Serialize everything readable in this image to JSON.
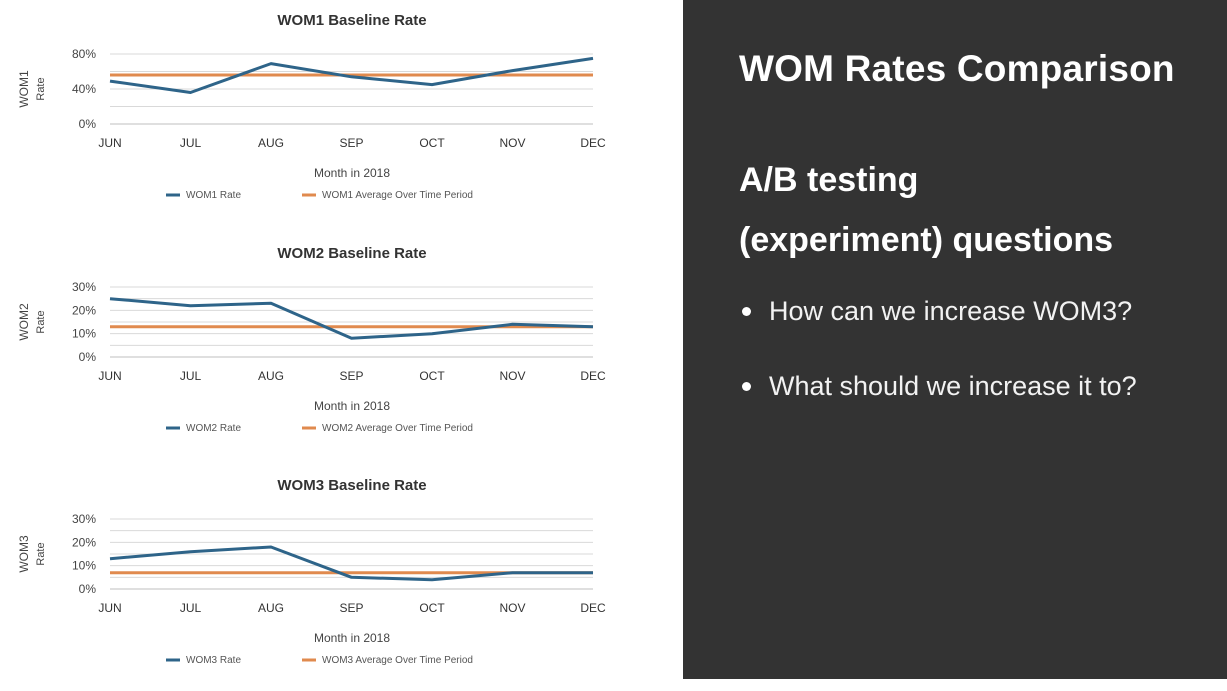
{
  "slide": {
    "title": "WOM Rates Comparison",
    "subtitle_line1": "A/B testing",
    "subtitle_line2": "(experiment) questions",
    "bullets": [
      "How can we increase WOM3?",
      "What should we increase it to?"
    ]
  },
  "colors": {
    "rate_line": "#2e6489",
    "average_line": "#e08a4e",
    "slide_background": "#333333"
  },
  "chart_data": [
    {
      "type": "line",
      "title": "WOM1 Baseline Rate",
      "xlabel": "Month in 2018",
      "ylabel": "WOM1",
      "ylabel_sub": "Rate",
      "categories": [
        "JUN",
        "JUL",
        "AUG",
        "SEP",
        "OCT",
        "NOV",
        "DEC"
      ],
      "yticks": [
        "0%",
        "40%",
        "80%"
      ],
      "ylim": [
        0,
        0.8
      ],
      "grid": true,
      "legend_position": "bottom",
      "series": [
        {
          "name": "WOM1 Rate",
          "values": [
            0.49,
            0.36,
            0.69,
            0.54,
            0.45,
            0.61,
            0.75
          ]
        },
        {
          "name": "WOM1 Average Over Time Period",
          "values": [
            0.56,
            0.56,
            0.56,
            0.56,
            0.56,
            0.56,
            0.56
          ]
        }
      ]
    },
    {
      "type": "line",
      "title": "WOM2 Baseline Rate",
      "xlabel": "Month in 2018",
      "ylabel": "WOM2",
      "ylabel_sub": "Rate",
      "categories": [
        "JUN",
        "JUL",
        "AUG",
        "SEP",
        "OCT",
        "NOV",
        "DEC"
      ],
      "yticks": [
        "0%",
        "10%",
        "20%",
        "30%"
      ],
      "ylim": [
        0,
        0.3
      ],
      "grid": true,
      "legend_position": "bottom",
      "series": [
        {
          "name": "WOM2 Rate",
          "values": [
            0.25,
            0.22,
            0.23,
            0.08,
            0.1,
            0.14,
            0.13
          ]
        },
        {
          "name": "WOM2 Average Over Time Period",
          "values": [
            0.13,
            0.13,
            0.13,
            0.13,
            0.13,
            0.13,
            0.13
          ]
        }
      ]
    },
    {
      "type": "line",
      "title": "WOM3 Baseline Rate",
      "xlabel": "Month in 2018",
      "ylabel": "WOM3",
      "ylabel_sub": "Rate",
      "categories": [
        "JUN",
        "JUL",
        "AUG",
        "SEP",
        "OCT",
        "NOV",
        "DEC"
      ],
      "yticks": [
        "0%",
        "10%",
        "20%",
        "30%"
      ],
      "ylim": [
        0,
        0.3
      ],
      "grid": true,
      "legend_position": "bottom",
      "series": [
        {
          "name": "WOM3 Rate",
          "values": [
            0.13,
            0.16,
            0.18,
            0.05,
            0.04,
            0.07,
            0.07
          ]
        },
        {
          "name": "WOM3 Average Over Time Period",
          "values": [
            0.07,
            0.07,
            0.07,
            0.07,
            0.07,
            0.07,
            0.07
          ]
        }
      ]
    }
  ]
}
